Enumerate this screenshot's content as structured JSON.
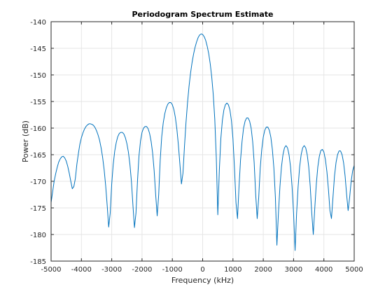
{
  "chart_data": {
    "type": "line",
    "title": "Periodogram Spectrum Estimate",
    "xlabel": "Frequency (kHz)",
    "ylabel": "Power (dB)",
    "xlim": [
      -5000,
      5000
    ],
    "ylim": [
      -185,
      -140
    ],
    "x_ticks": [
      -5000,
      -4000,
      -3000,
      -2000,
      -1000,
      0,
      1000,
      2000,
      3000,
      4000,
      5000
    ],
    "x_tick_labels": [
      "-5000",
      "-4000",
      "-3000",
      "-2000",
      "-1000",
      "0",
      "1000",
      "2000",
      "3000",
      "4000",
      "5000"
    ],
    "y_ticks": [
      -140,
      -145,
      -150,
      -155,
      -160,
      -165,
      -170,
      -175,
      -180,
      -185
    ],
    "y_tick_labels": [
      "-140",
      "-145",
      "-150",
      "-155",
      "-160",
      "-165",
      "-170",
      "-175",
      "-180",
      "-185"
    ],
    "grid": true,
    "series": [
      {
        "color": "#0072bd",
        "points": [
          [
            -5000,
            -174.0
          ],
          [
            -4950,
            -172.0
          ],
          [
            -4900,
            -170.0
          ],
          [
            -4850,
            -168.6
          ],
          [
            -4800,
            -167.4
          ],
          [
            -4750,
            -166.4
          ],
          [
            -4700,
            -165.8
          ],
          [
            -4650,
            -165.4
          ],
          [
            -4600,
            -165.3
          ],
          [
            -4550,
            -165.6
          ],
          [
            -4500,
            -166.2
          ],
          [
            -4450,
            -167.2
          ],
          [
            -4400,
            -168.5
          ],
          [
            -4350,
            -170.0
          ],
          [
            -4300,
            -171.4
          ],
          [
            -4250,
            -171.0
          ],
          [
            -4200,
            -169.5
          ],
          [
            -4150,
            -166.8
          ],
          [
            -4100,
            -164.8
          ],
          [
            -4050,
            -163.0
          ],
          [
            -4000,
            -161.8
          ],
          [
            -3950,
            -160.9
          ],
          [
            -3900,
            -160.2
          ],
          [
            -3850,
            -159.7
          ],
          [
            -3800,
            -159.4
          ],
          [
            -3750,
            -159.2
          ],
          [
            -3700,
            -159.2
          ],
          [
            -3650,
            -159.3
          ],
          [
            -3600,
            -159.5
          ],
          [
            -3550,
            -159.9
          ],
          [
            -3500,
            -160.5
          ],
          [
            -3450,
            -161.3
          ],
          [
            -3400,
            -162.3
          ],
          [
            -3350,
            -163.7
          ],
          [
            -3300,
            -165.5
          ],
          [
            -3250,
            -167.8
          ],
          [
            -3200,
            -170.8
          ],
          [
            -3150,
            -174.5
          ],
          [
            -3100,
            -178.6
          ],
          [
            -3050,
            -176.0
          ],
          [
            -3000,
            -170.5
          ],
          [
            -2950,
            -166.8
          ],
          [
            -2900,
            -164.3
          ],
          [
            -2850,
            -162.7
          ],
          [
            -2800,
            -161.6
          ],
          [
            -2750,
            -161.0
          ],
          [
            -2700,
            -160.8
          ],
          [
            -2650,
            -160.8
          ],
          [
            -2600,
            -161.1
          ],
          [
            -2550,
            -161.8
          ],
          [
            -2500,
            -162.9
          ],
          [
            -2450,
            -164.5
          ],
          [
            -2400,
            -166.8
          ],
          [
            -2350,
            -170.0
          ],
          [
            -2300,
            -174.5
          ],
          [
            -2250,
            -178.7
          ],
          [
            -2200,
            -176.0
          ],
          [
            -2150,
            -170.0
          ],
          [
            -2100,
            -165.2
          ],
          [
            -2050,
            -162.4
          ],
          [
            -2000,
            -160.8
          ],
          [
            -1950,
            -160.0
          ],
          [
            -1900,
            -159.7
          ],
          [
            -1850,
            -159.7
          ],
          [
            -1800,
            -160.1
          ],
          [
            -1750,
            -161.0
          ],
          [
            -1700,
            -162.5
          ],
          [
            -1650,
            -164.7
          ],
          [
            -1600,
            -168.0
          ],
          [
            -1550,
            -172.5
          ],
          [
            -1500,
            -176.5
          ],
          [
            -1450,
            -172.5
          ],
          [
            -1400,
            -166.0
          ],
          [
            -1350,
            -161.6
          ],
          [
            -1300,
            -159.0
          ],
          [
            -1250,
            -157.3
          ],
          [
            -1200,
            -156.2
          ],
          [
            -1150,
            -155.5
          ],
          [
            -1100,
            -155.2
          ],
          [
            -1050,
            -155.2
          ],
          [
            -1000,
            -155.6
          ],
          [
            -950,
            -156.5
          ],
          [
            -900,
            -158.0
          ],
          [
            -850,
            -160.2
          ],
          [
            -800,
            -163.2
          ],
          [
            -750,
            -166.8
          ],
          [
            -700,
            -170.5
          ],
          [
            -650,
            -168.5
          ],
          [
            -600,
            -163.5
          ],
          [
            -550,
            -159.0
          ],
          [
            -500,
            -155.3
          ],
          [
            -450,
            -152.2
          ],
          [
            -400,
            -149.7
          ],
          [
            -350,
            -147.7
          ],
          [
            -300,
            -146.1
          ],
          [
            -250,
            -144.8
          ],
          [
            -200,
            -143.8
          ],
          [
            -150,
            -143.0
          ],
          [
            -100,
            -142.5
          ],
          [
            -50,
            -142.3
          ],
          [
            0,
            -142.4
          ],
          [
            50,
            -142.8
          ],
          [
            100,
            -143.5
          ],
          [
            150,
            -144.6
          ],
          [
            200,
            -146.0
          ],
          [
            250,
            -147.9
          ],
          [
            300,
            -150.4
          ],
          [
            350,
            -153.7
          ],
          [
            400,
            -158.3
          ],
          [
            450,
            -165.5
          ],
          [
            500,
            -176.3
          ],
          [
            550,
            -168.0
          ],
          [
            600,
            -162.0
          ],
          [
            650,
            -158.6
          ],
          [
            700,
            -156.6
          ],
          [
            750,
            -155.6
          ],
          [
            800,
            -155.3
          ],
          [
            850,
            -155.6
          ],
          [
            900,
            -156.6
          ],
          [
            950,
            -158.6
          ],
          [
            1000,
            -162.0
          ],
          [
            1050,
            -167.5
          ],
          [
            1100,
            -174.0
          ],
          [
            1150,
            -177.0
          ],
          [
            1200,
            -171.0
          ],
          [
            1250,
            -166.0
          ],
          [
            1300,
            -162.5
          ],
          [
            1350,
            -160.0
          ],
          [
            1400,
            -158.7
          ],
          [
            1450,
            -158.1
          ],
          [
            1500,
            -158.1
          ],
          [
            1550,
            -158.7
          ],
          [
            1600,
            -160.0
          ],
          [
            1650,
            -162.5
          ],
          [
            1700,
            -166.5
          ],
          [
            1750,
            -172.5
          ],
          [
            1800,
            -177.0
          ],
          [
            1850,
            -173.0
          ],
          [
            1900,
            -167.5
          ],
          [
            1950,
            -164.0
          ],
          [
            2000,
            -161.7
          ],
          [
            2050,
            -160.4
          ],
          [
            2100,
            -159.8
          ],
          [
            2150,
            -159.8
          ],
          [
            2200,
            -160.4
          ],
          [
            2250,
            -161.7
          ],
          [
            2300,
            -164.0
          ],
          [
            2350,
            -167.5
          ],
          [
            2400,
            -173.0
          ],
          [
            2450,
            -182.0
          ],
          [
            2500,
            -176.0
          ],
          [
            2550,
            -171.0
          ],
          [
            2600,
            -167.3
          ],
          [
            2650,
            -165.0
          ],
          [
            2700,
            -163.7
          ],
          [
            2750,
            -163.3
          ],
          [
            2800,
            -163.7
          ],
          [
            2850,
            -165.0
          ],
          [
            2900,
            -167.3
          ],
          [
            2950,
            -171.0
          ],
          [
            3000,
            -176.0
          ],
          [
            3050,
            -183.0
          ],
          [
            3100,
            -176.0
          ],
          [
            3150,
            -171.0
          ],
          [
            3200,
            -167.3
          ],
          [
            3250,
            -165.0
          ],
          [
            3300,
            -163.7
          ],
          [
            3350,
            -163.3
          ],
          [
            3400,
            -163.7
          ],
          [
            3450,
            -165.0
          ],
          [
            3500,
            -167.3
          ],
          [
            3550,
            -171.0
          ],
          [
            3600,
            -176.0
          ],
          [
            3650,
            -180.0
          ],
          [
            3700,
            -175.0
          ],
          [
            3750,
            -170.5
          ],
          [
            3800,
            -167.3
          ],
          [
            3850,
            -165.3
          ],
          [
            3900,
            -164.2
          ],
          [
            3950,
            -164.0
          ],
          [
            4000,
            -164.5
          ],
          [
            4050,
            -165.9
          ],
          [
            4100,
            -168.2
          ],
          [
            4150,
            -171.5
          ],
          [
            4200,
            -175.5
          ],
          [
            4250,
            -177.0
          ],
          [
            4300,
            -173.0
          ],
          [
            4350,
            -169.0
          ],
          [
            4400,
            -166.5
          ],
          [
            4450,
            -165.0
          ],
          [
            4500,
            -164.3
          ],
          [
            4550,
            -164.3
          ],
          [
            4600,
            -165.0
          ],
          [
            4650,
            -166.5
          ],
          [
            4700,
            -169.0
          ],
          [
            4750,
            -172.5
          ],
          [
            4800,
            -175.5
          ],
          [
            4850,
            -173.0
          ],
          [
            4900,
            -170.0
          ],
          [
            4950,
            -168.0
          ],
          [
            5000,
            -167.0
          ]
        ]
      }
    ]
  }
}
